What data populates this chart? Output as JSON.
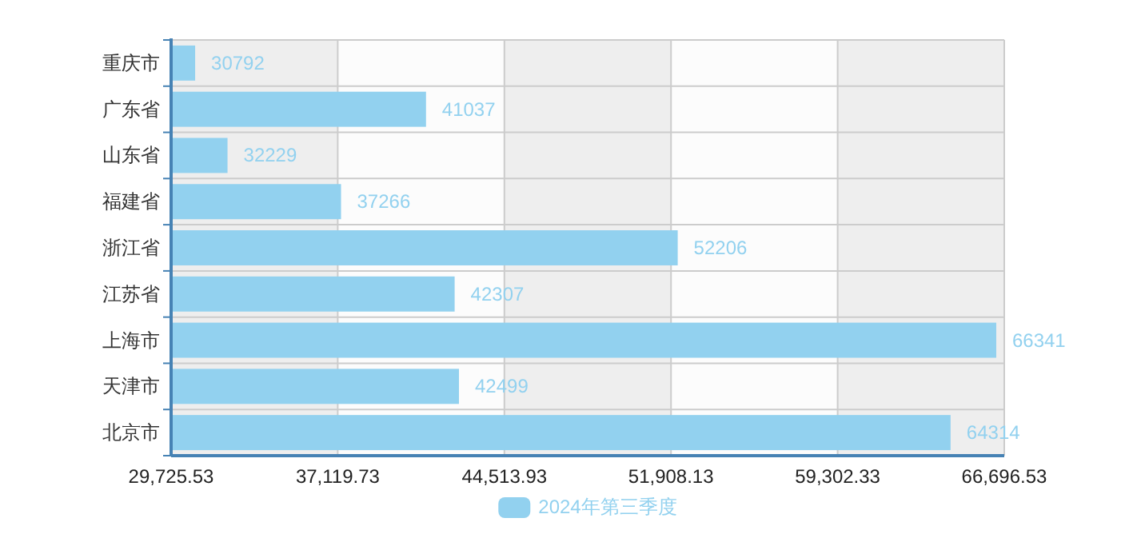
{
  "chart_data": {
    "type": "bar",
    "orientation": "horizontal",
    "categories": [
      "重庆市",
      "广东省",
      "山东省",
      "福建省",
      "浙江省",
      "江苏省",
      "上海市",
      "天津市",
      "北京市"
    ],
    "series": [
      {
        "name": "2024年第三季度",
        "color": "#92d1ef",
        "values": [
          30792,
          41037,
          32229,
          37266,
          52206,
          42307,
          66341,
          42499,
          64314
        ]
      }
    ],
    "xlim": [
      29725.53,
      66696.53
    ],
    "xticks": [
      {
        "value": 29725.53,
        "label": "29,725.53"
      },
      {
        "value": 37119.73,
        "label": "37,119.73"
      },
      {
        "value": 44513.93,
        "label": "44,513.93"
      },
      {
        "value": 51908.13,
        "label": "51,908.13"
      },
      {
        "value": 59302.33,
        "label": "59,302.33"
      },
      {
        "value": 66696.53,
        "label": "66,696.53"
      }
    ],
    "grid": true,
    "legend": "bottom",
    "data_labels": true
  }
}
